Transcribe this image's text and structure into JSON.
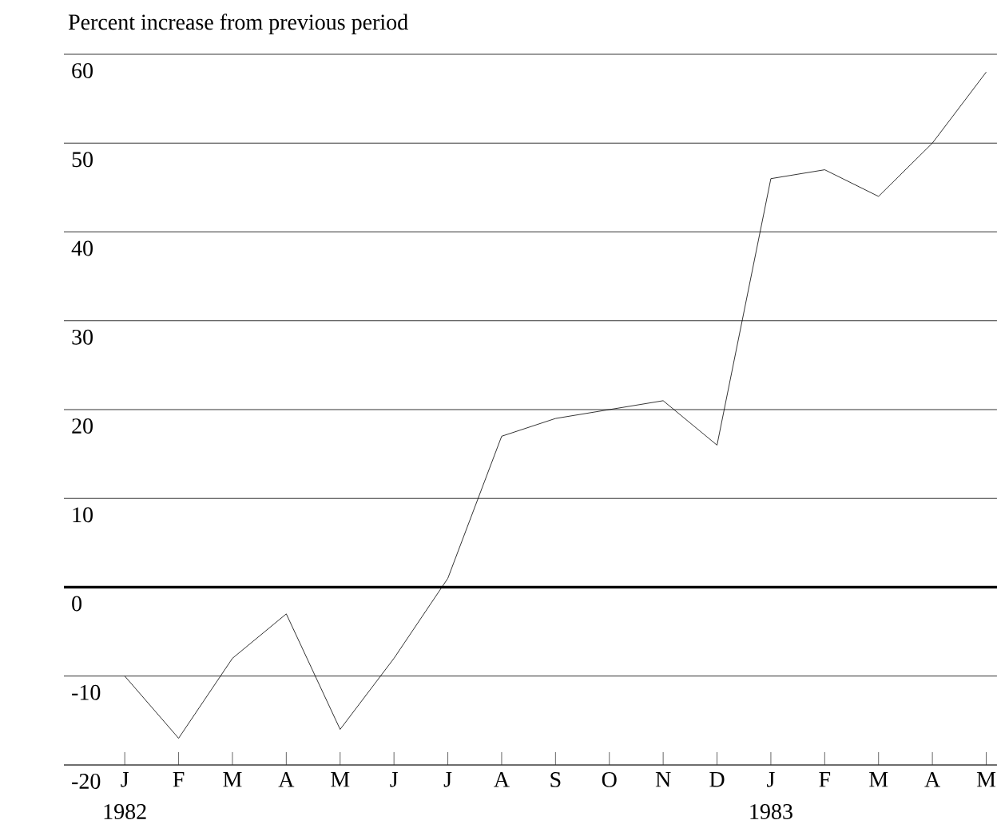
{
  "chart_data": {
    "type": "line",
    "ylabel": "Percent increase from previous period",
    "categories": [
      "J",
      "F",
      "M",
      "A",
      "M",
      "J",
      "J",
      "A",
      "S",
      "O",
      "N",
      "D",
      "J",
      "F",
      "M",
      "A",
      "M"
    ],
    "series": [
      {
        "color": "#000000",
        "values": [
          -10,
          -17,
          -8,
          -3,
          -16,
          -8,
          1,
          17,
          19,
          20,
          21,
          16,
          46,
          47,
          44,
          50,
          58
        ]
      }
    ],
    "ylim": [
      -20,
      60
    ],
    "yticks": [
      -20,
      -10,
      0,
      10,
      20,
      30,
      40,
      50,
      60
    ],
    "annotations": [
      "1982",
      "1983"
    ],
    "ref_lines": [
      {
        "axis": "y",
        "value": 0
      }
    ],
    "grid": "y",
    "marker": "none",
    "line_style": "solid"
  }
}
